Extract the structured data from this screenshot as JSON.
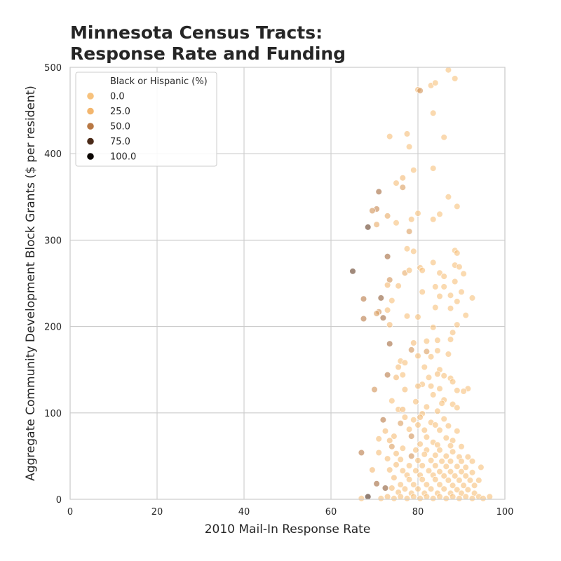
{
  "title": {
    "line1": "Minnesota Census Tracts:",
    "line2": "Response Rate and Funding"
  },
  "chart_data": {
    "type": "scatter",
    "xlabel": "2010 Mail-In Response Rate",
    "ylabel": "Aggregate Community Development Block Grants ($ per resident)",
    "xlim": [
      0,
      100
    ],
    "ylim": [
      0,
      500
    ],
    "xticks": [
      "0",
      "20",
      "40",
      "60",
      "80",
      "100"
    ],
    "yticks": [
      "0",
      "100",
      "200",
      "300",
      "400",
      "500"
    ],
    "grid": true,
    "legend": {
      "title": "Black or Hispanic (%)",
      "placement": "top-left",
      "entries": [
        {
          "label": "0.0",
          "value": 0
        },
        {
          "label": "25.0",
          "value": 25
        },
        {
          "label": "50.0",
          "value": 50
        },
        {
          "label": "75.0",
          "value": 75
        },
        {
          "label": "100.0",
          "value": 100
        }
      ]
    },
    "hue_colors": {
      "0": "#f7c27d",
      "25": "#f3b66e",
      "50": "#b87844",
      "75": "#4a2a18",
      "100": "#0a0502"
    },
    "point_alpha": 0.6,
    "points": [
      [
        87,
        497,
        2
      ],
      [
        88.5,
        487,
        3
      ],
      [
        80,
        474,
        25
      ],
      [
        83,
        479,
        4
      ],
      [
        84,
        482,
        3
      ],
      [
        80.5,
        473,
        40
      ],
      [
        83.5,
        447,
        5
      ],
      [
        77.5,
        423,
        10
      ],
      [
        73.5,
        420,
        8
      ],
      [
        86,
        419,
        4
      ],
      [
        78,
        408,
        5
      ],
      [
        83.5,
        383,
        5
      ],
      [
        79,
        381,
        5
      ],
      [
        76.5,
        372,
        20
      ],
      [
        75,
        366,
        10
      ],
      [
        76.5,
        361,
        35
      ],
      [
        71,
        356,
        55
      ],
      [
        87,
        350,
        3
      ],
      [
        89,
        339,
        3
      ],
      [
        70.5,
        336,
        45
      ],
      [
        69.5,
        334,
        40
      ],
      [
        80,
        331,
        6
      ],
      [
        85,
        330,
        3
      ],
      [
        73,
        328,
        30
      ],
      [
        83.5,
        324,
        8
      ],
      [
        78.5,
        324,
        10
      ],
      [
        75,
        320,
        5
      ],
      [
        70.5,
        318,
        30
      ],
      [
        68.5,
        315,
        70
      ],
      [
        78,
        310,
        35
      ],
      [
        77.5,
        290,
        5
      ],
      [
        79,
        287,
        5
      ],
      [
        88.5,
        288,
        3
      ],
      [
        89,
        285,
        4
      ],
      [
        73,
        281,
        55
      ],
      [
        83.5,
        274,
        5
      ],
      [
        88.5,
        271,
        5
      ],
      [
        89.5,
        269,
        4
      ],
      [
        80.5,
        268,
        10
      ],
      [
        81,
        265,
        8
      ],
      [
        77,
        262,
        30
      ],
      [
        65,
        264,
        70
      ],
      [
        90.5,
        261,
        3
      ],
      [
        78,
        265,
        10
      ],
      [
        85,
        262,
        4
      ],
      [
        86,
        258,
        5
      ],
      [
        73.5,
        254,
        40
      ],
      [
        88.5,
        252,
        5
      ],
      [
        75.5,
        247,
        10
      ],
      [
        73,
        248,
        25
      ],
      [
        84,
        246,
        5
      ],
      [
        86,
        246,
        3
      ],
      [
        81,
        240,
        5
      ],
      [
        90,
        240,
        4
      ],
      [
        87.5,
        236,
        3
      ],
      [
        85,
        235,
        5
      ],
      [
        89,
        229,
        5
      ],
      [
        92.5,
        233,
        3
      ],
      [
        74,
        230,
        5
      ],
      [
        67.5,
        232,
        50
      ],
      [
        71.5,
        233,
        60
      ],
      [
        84,
        222,
        5
      ],
      [
        87.5,
        221,
        4
      ],
      [
        73,
        219,
        10
      ],
      [
        71,
        217,
        40
      ],
      [
        70.5,
        215,
        35
      ],
      [
        72,
        210,
        55
      ],
      [
        67.5,
        209,
        50
      ],
      [
        80,
        211,
        5
      ],
      [
        77.5,
        212,
        8
      ],
      [
        91,
        213,
        3
      ],
      [
        73.5,
        202,
        20
      ],
      [
        89,
        202,
        4
      ],
      [
        83.5,
        199,
        5
      ],
      [
        88,
        193,
        4
      ],
      [
        87.5,
        185,
        5
      ],
      [
        84.5,
        184,
        6
      ],
      [
        79,
        181,
        15
      ],
      [
        82,
        183,
        5
      ],
      [
        73.5,
        180,
        55
      ],
      [
        78.5,
        173,
        40
      ],
      [
        82,
        171,
        35
      ],
      [
        84.5,
        172,
        6
      ],
      [
        87,
        168,
        4
      ],
      [
        80,
        166,
        10
      ],
      [
        83,
        165,
        5
      ],
      [
        76,
        160,
        5
      ],
      [
        77,
        158,
        5
      ],
      [
        81.5,
        153,
        5
      ],
      [
        75.5,
        153,
        10
      ],
      [
        85,
        150,
        5
      ],
      [
        84.5,
        145,
        10
      ],
      [
        76.5,
        144,
        5
      ],
      [
        73,
        144,
        50
      ],
      [
        75,
        141,
        20
      ],
      [
        82.5,
        141,
        5
      ],
      [
        86,
        143,
        6
      ],
      [
        87.5,
        140,
        5
      ],
      [
        88,
        136,
        5
      ],
      [
        81,
        133,
        5
      ],
      [
        80,
        131,
        10
      ],
      [
        83,
        131,
        5
      ],
      [
        89,
        126,
        5
      ],
      [
        91.5,
        128,
        4
      ],
      [
        85,
        128,
        5
      ],
      [
        70,
        127,
        40
      ],
      [
        90.5,
        125,
        4
      ],
      [
        77,
        127,
        10
      ],
      [
        83.5,
        121,
        5
      ],
      [
        86,
        115,
        5
      ],
      [
        74,
        114,
        5
      ],
      [
        79.5,
        113,
        8
      ],
      [
        85.5,
        111,
        5
      ],
      [
        88,
        110,
        5
      ],
      [
        82,
        107,
        5
      ],
      [
        75.5,
        104,
        10
      ],
      [
        76.5,
        104,
        20
      ],
      [
        89,
        106,
        5
      ],
      [
        84.5,
        102,
        5
      ],
      [
        81,
        99,
        5
      ],
      [
        77,
        95,
        8
      ],
      [
        80.5,
        95,
        20
      ],
      [
        79,
        92,
        5
      ],
      [
        72,
        92,
        50
      ],
      [
        86,
        93,
        5
      ],
      [
        83,
        89,
        5
      ],
      [
        76,
        88,
        35
      ],
      [
        80,
        86,
        5
      ],
      [
        84,
        86,
        5
      ],
      [
        87,
        85,
        5
      ],
      [
        78,
        81,
        5
      ],
      [
        81.5,
        80,
        5
      ],
      [
        85,
        80,
        5
      ],
      [
        72.5,
        79,
        15
      ],
      [
        89,
        79,
        5
      ],
      [
        74.5,
        73,
        10
      ],
      [
        78.5,
        73,
        40
      ],
      [
        82,
        72,
        5
      ],
      [
        86.5,
        71,
        5
      ],
      [
        88,
        68,
        5
      ],
      [
        71,
        70,
        10
      ],
      [
        73.5,
        68,
        20
      ],
      [
        83.5,
        66,
        5
      ],
      [
        80.5,
        64,
        5
      ],
      [
        84.5,
        63,
        5
      ],
      [
        87.5,
        62,
        5
      ],
      [
        90,
        61,
        5
      ],
      [
        74,
        61,
        35
      ],
      [
        76.5,
        59,
        5
      ],
      [
        79.5,
        57,
        5
      ],
      [
        82,
        57,
        5
      ],
      [
        85,
        57,
        5
      ],
      [
        88,
        55,
        5
      ],
      [
        67,
        54,
        50
      ],
      [
        71,
        54,
        10
      ],
      [
        75,
        53,
        10
      ],
      [
        81.5,
        52,
        5
      ],
      [
        84,
        51,
        5
      ],
      [
        78.5,
        50,
        40
      ],
      [
        86.5,
        50,
        5
      ],
      [
        89.5,
        49,
        5
      ],
      [
        91.5,
        49,
        5
      ],
      [
        73,
        47,
        10
      ],
      [
        76,
        46,
        5
      ],
      [
        80,
        45,
        5
      ],
      [
        83,
        45,
        5
      ],
      [
        85.5,
        44,
        5
      ],
      [
        87.5,
        44,
        5
      ],
      [
        90,
        44,
        5
      ],
      [
        92.5,
        44,
        5
      ],
      [
        75,
        40,
        10
      ],
      [
        78,
        39,
        5
      ],
      [
        81,
        39,
        5
      ],
      [
        84,
        39,
        5
      ],
      [
        86.5,
        38,
        5
      ],
      [
        89,
        38,
        5
      ],
      [
        91,
        37,
        5
      ],
      [
        94.5,
        37,
        5
      ],
      [
        69.5,
        34,
        20
      ],
      [
        73.5,
        34,
        10
      ],
      [
        76.5,
        33,
        5
      ],
      [
        79.5,
        33,
        5
      ],
      [
        82.5,
        33,
        5
      ],
      [
        85,
        32,
        5
      ],
      [
        87.5,
        32,
        5
      ],
      [
        90,
        32,
        5
      ],
      [
        92.5,
        31,
        5
      ],
      [
        77.5,
        28,
        8
      ],
      [
        80.5,
        28,
        5
      ],
      [
        83.5,
        28,
        5
      ],
      [
        86,
        27,
        5
      ],
      [
        88.5,
        27,
        5
      ],
      [
        91,
        27,
        5
      ],
      [
        74.5,
        25,
        15
      ],
      [
        78,
        23,
        5
      ],
      [
        81,
        23,
        5
      ],
      [
        84,
        23,
        5
      ],
      [
        87,
        22,
        5
      ],
      [
        89.5,
        22,
        5
      ],
      [
        92,
        22,
        5
      ],
      [
        94,
        22,
        5
      ],
      [
        70.5,
        18,
        55
      ],
      [
        76,
        17,
        5
      ],
      [
        79,
        17,
        5
      ],
      [
        82,
        17,
        5
      ],
      [
        85,
        17,
        5
      ],
      [
        88,
        16,
        5
      ],
      [
        90.5,
        16,
        5
      ],
      [
        93,
        16,
        5
      ],
      [
        72.5,
        13,
        60
      ],
      [
        74,
        13,
        10
      ],
      [
        77,
        12,
        5
      ],
      [
        80,
        12,
        5
      ],
      [
        83,
        12,
        5
      ],
      [
        86,
        12,
        5
      ],
      [
        89,
        11,
        5
      ],
      [
        91.5,
        11,
        5
      ],
      [
        75.5,
        8,
        10
      ],
      [
        78.5,
        7,
        5
      ],
      [
        81.5,
        7,
        5
      ],
      [
        84.5,
        7,
        5
      ],
      [
        87.5,
        7,
        5
      ],
      [
        90,
        7,
        5
      ],
      [
        93,
        7,
        5
      ],
      [
        68.5,
        3,
        75
      ],
      [
        73,
        3,
        10
      ],
      [
        76,
        3,
        5
      ],
      [
        79,
        3,
        5
      ],
      [
        82,
        3,
        5
      ],
      [
        85,
        3,
        5
      ],
      [
        88,
        3,
        5
      ],
      [
        91,
        3,
        5
      ],
      [
        94,
        3,
        5
      ],
      [
        96.5,
        3,
        5
      ],
      [
        67,
        1,
        10
      ],
      [
        71.5,
        1,
        5
      ],
      [
        74.5,
        1,
        5
      ],
      [
        77.5,
        1,
        5
      ],
      [
        80.5,
        1,
        5
      ],
      [
        83.5,
        1,
        5
      ],
      [
        86.5,
        1,
        5
      ],
      [
        89.5,
        1,
        5
      ],
      [
        92.5,
        1,
        5
      ],
      [
        95,
        1,
        5
      ]
    ]
  }
}
